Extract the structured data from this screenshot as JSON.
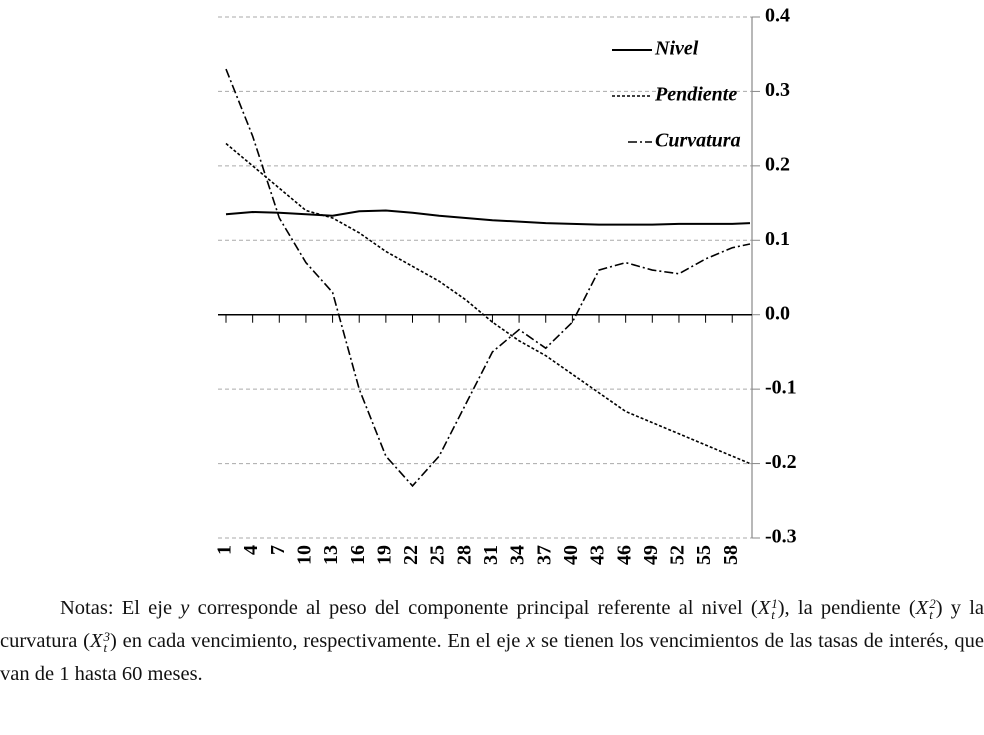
{
  "chart_data": {
    "type": "line",
    "x": [
      1,
      4,
      7,
      10,
      13,
      16,
      19,
      22,
      25,
      28,
      31,
      34,
      37,
      40,
      43,
      46,
      49,
      52,
      55,
      58,
      60
    ],
    "xlim": [
      1,
      60
    ],
    "xticks": [
      1,
      4,
      7,
      10,
      13,
      16,
      19,
      22,
      25,
      28,
      31,
      34,
      37,
      40,
      43,
      46,
      49,
      52,
      55,
      58
    ],
    "ylim": [
      -0.3,
      0.4
    ],
    "yticks": [
      0.4,
      0.3,
      0.2,
      0.1,
      {
        "value": 0,
        "label": "0.0"
      },
      -0.1,
      -0.2,
      -0.3
    ],
    "grid": true,
    "legend": "top-right",
    "series": [
      {
        "name": "Nivel",
        "color": "#000000",
        "dash": "solid",
        "values": [
          0.135,
          0.138,
          0.137,
          0.135,
          0.133,
          0.139,
          0.14,
          0.137,
          0.133,
          0.13,
          0.127,
          0.125,
          0.123,
          0.122,
          0.121,
          0.121,
          0.121,
          0.122,
          0.122,
          0.122,
          0.123
        ]
      },
      {
        "name": "Pendiente",
        "color": "#000000",
        "dash": "dotted",
        "values": [
          0.23,
          0.2,
          0.17,
          0.14,
          0.13,
          0.11,
          0.085,
          0.065,
          0.045,
          0.02,
          -0.01,
          -0.035,
          -0.055,
          -0.08,
          -0.105,
          -0.13,
          -0.145,
          -0.16,
          -0.175,
          -0.19,
          -0.2
        ]
      },
      {
        "name": "Curvatura",
        "color": "#000000",
        "dash": "dashdot",
        "values": [
          0.33,
          0.24,
          0.13,
          0.07,
          0.03,
          -0.1,
          -0.19,
          -0.23,
          -0.19,
          -0.12,
          -0.05,
          -0.02,
          -0.045,
          -0.01,
          0.06,
          0.07,
          0.06,
          0.055,
          0.075,
          0.09,
          0.095
        ]
      }
    ]
  },
  "notes": [
    "Notas: El eje ",
    "y",
    " corresponde al peso del componente principal referente al nivel (",
    "X",
    "1",
    "t",
    "), la pendiente (",
    "X",
    "2",
    "t",
    ") y la curvatura (",
    "X",
    "3",
    "t",
    ") en cada vencimiento, respectivamente. En el eje ",
    "x",
    " se tienen los vencimientos de las tasas de interés, que van de 1 hasta 60 meses."
  ]
}
